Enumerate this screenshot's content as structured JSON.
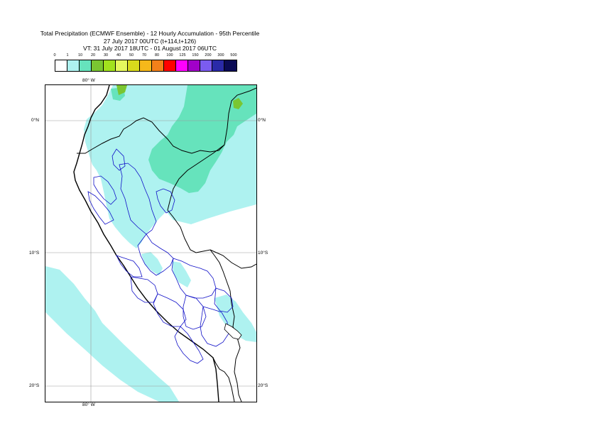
{
  "title": {
    "line1": "Total Precipitation (ECMWF Ensemble) - 12 Hourly Accumulation - 95th Percentile",
    "line2": "27 July 2017 00UTC (t+114,t+126)",
    "line3": "VT: 31 July 2017 18UTC - 01 August 2017 06UTC"
  },
  "legend": {
    "labels": [
      "0",
      "1",
      "10",
      "20",
      "30",
      "40",
      "50",
      "70",
      "80",
      "100",
      "125",
      "150",
      "200",
      "300",
      "500"
    ],
    "colors": [
      "#ffffff",
      "#aef2f0",
      "#66e3bc",
      "#7ac631",
      "#a2e21d",
      "#e5f75e",
      "#d8da1c",
      "#f6b81a",
      "#f3801a",
      "#ff0000",
      "#ff00ff",
      "#a100c8",
      "#7b5cf0",
      "#2a2aa8",
      "#0a0a55"
    ]
  },
  "map": {
    "lon_label_top": "80° W",
    "lon_label_bottom": "80° W",
    "lat_labels": [
      "0°N",
      "10°S",
      "20°S"
    ],
    "colors": {
      "light_precip": "#aef2f0",
      "medium_precip": "#66e3bc",
      "heavy_precip": "#7ac631",
      "coastline": "#000000",
      "admin_border": "#1010c8",
      "gridline": "#9a9a9a"
    }
  }
}
